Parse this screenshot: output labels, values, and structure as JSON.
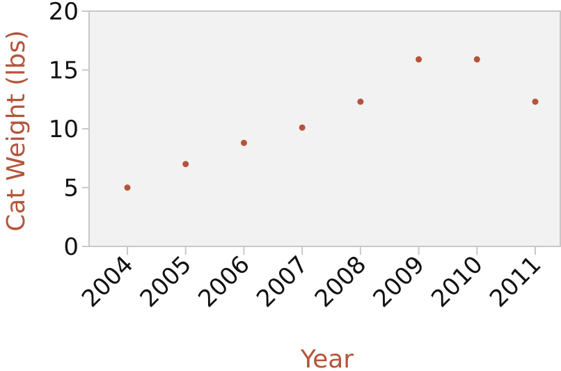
{
  "chart_data": {
    "type": "scatter",
    "title": "",
    "xlabel": "Year",
    "ylabel": "Cat Weight (lbs)",
    "x": [
      "2004",
      "2005",
      "2006",
      "2007",
      "2008",
      "2009",
      "2010",
      "2011"
    ],
    "y": [
      5,
      7,
      8.8,
      10.1,
      12.3,
      15.9,
      15.9,
      12.3
    ],
    "ylim": [
      0,
      20
    ],
    "yticks": [
      "0",
      "5",
      "10",
      "15",
      "20"
    ],
    "grid": false,
    "legend": "none",
    "colors": {
      "point": "#b5543a",
      "axis_title": "#b5543a",
      "plot_background": "#f2f2f2",
      "axis_line": "#c8c8c8"
    }
  }
}
